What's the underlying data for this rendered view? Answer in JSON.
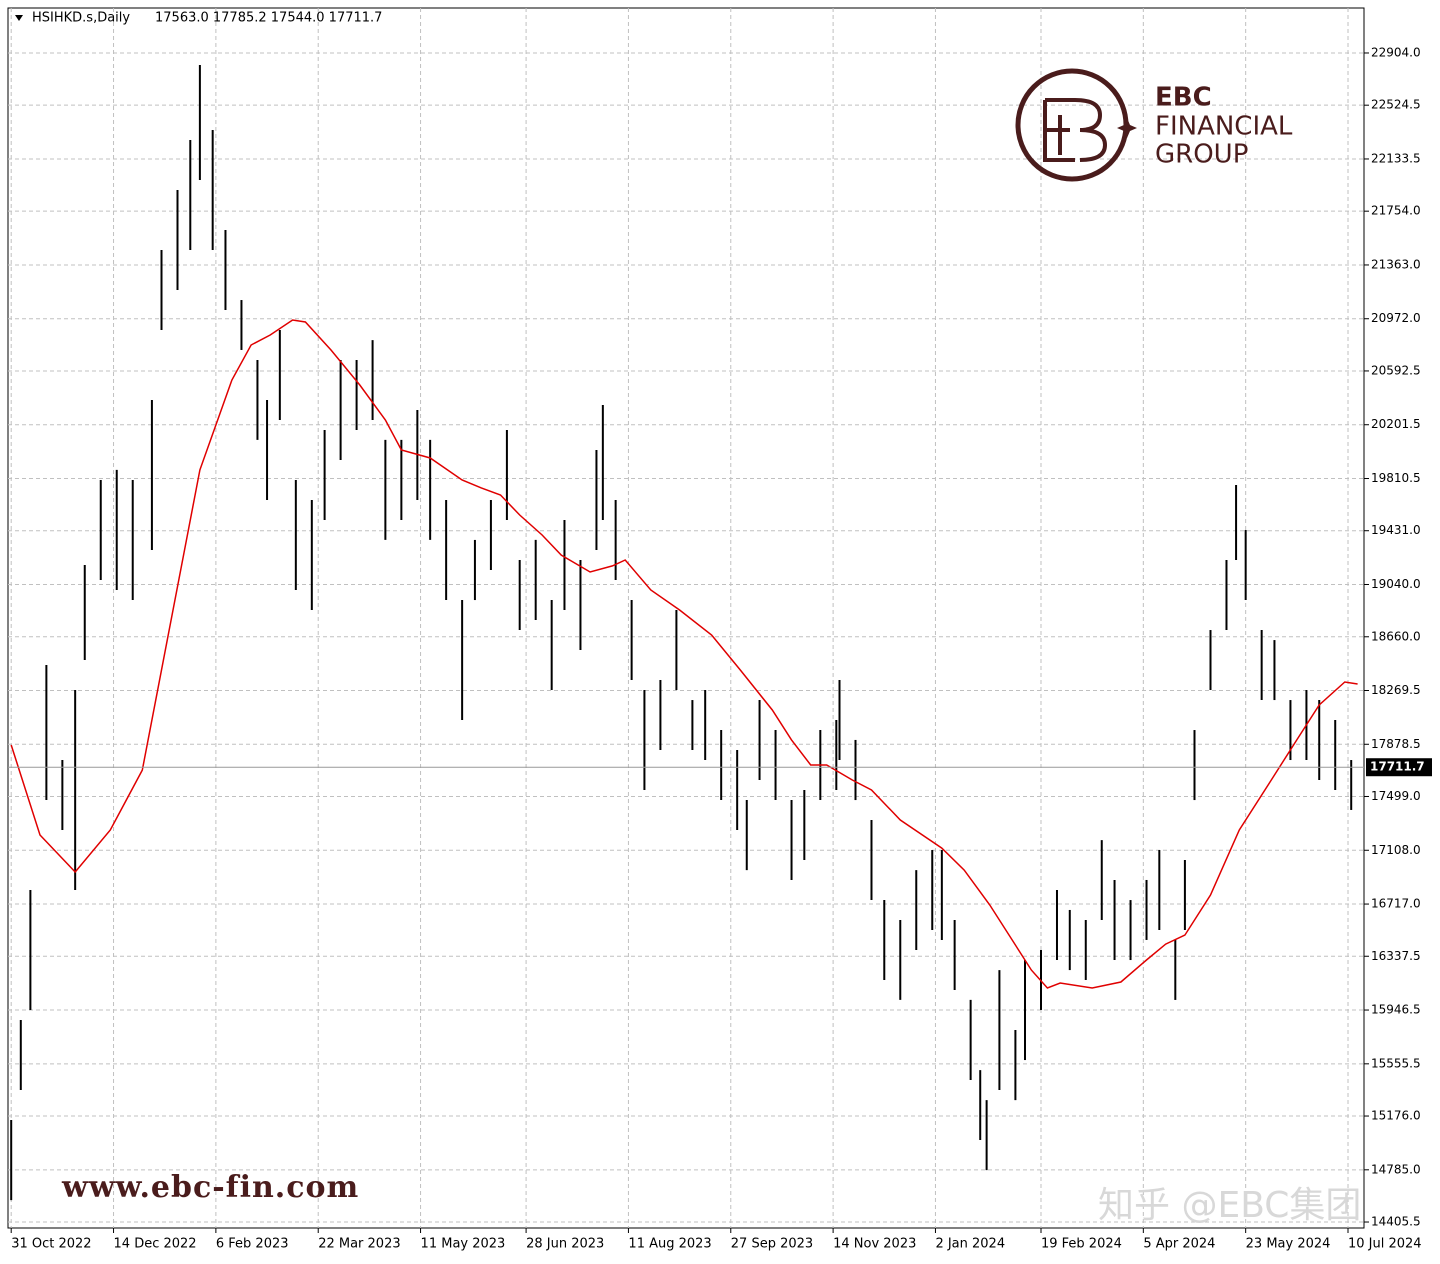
{
  "chart_data": {
    "type": "ohlc",
    "title": "HSIHKD.s,Daily",
    "subtitle": "17563.0 17785.2 17544.0 17711.7",
    "color": "#000000",
    "last_price": 17711.7,
    "x": [
      0,
      3,
      6,
      11,
      16,
      20,
      23,
      28,
      33,
      38,
      44,
      47,
      52,
      56,
      59,
      63,
      67,
      72,
      77,
      80,
      84,
      89,
      94,
      98,
      103,
      108,
      113,
      117,
      122,
      127,
      131,
      136,
      141,
      145,
      150,
      155,
      159,
      164,
      169,
      173,
      178,
      183,
      185,
      189,
      194,
      198,
      203,
      208,
      213,
      217,
      222,
      227,
      230,
      234,
      239,
      244,
      248,
      253,
      258,
      259,
      264,
      269,
      273,
      278,
      283,
      288,
      291,
      295,
      300,
      303,
      305,
      309,
      314,
      317,
      322,
      327,
      331,
      336,
      341,
      345,
      350,
      355,
      359,
      364,
      367,
      370,
      375,
      380,
      383,
      386,
      391,
      395,
      400,
      405,
      409,
      414,
      419
    ],
    "high": [
      15147,
      15874,
      16819,
      18455,
      17764,
      18273,
      19182,
      19800,
      19873,
      19800,
      20381,
      21472,
      21908,
      22271,
      22817,
      22344,
      21617,
      21108,
      20672,
      20381,
      20890,
      19800,
      19654,
      20163,
      20672,
      20672,
      20817,
      20091,
      20091,
      20309,
      20091,
      19654,
      18927,
      19364,
      19654,
      20163,
      19218,
      19364,
      18927,
      19509,
      19218,
      20018,
      20345,
      19654,
      18927,
      18273,
      18346,
      18855,
      18200,
      18273,
      17982,
      17837,
      17473,
      18200,
      17982,
      17473,
      17546,
      17982,
      18055,
      18346,
      17910,
      17328,
      16746,
      16601,
      16964,
      17110,
      17110,
      16601,
      16020,
      15510,
      15292,
      16237,
      15801,
      16310,
      16383,
      16819,
      16674,
      16601,
      17182,
      16892,
      16746,
      16892,
      17110,
      16456,
      17037,
      17982,
      18709,
      19218,
      19763,
      19436,
      18709,
      18636,
      18200,
      18273,
      18200,
      18055,
      17764
    ],
    "low": [
      14565,
      15365,
      15947,
      17473,
      17255,
      16819,
      18491,
      19073,
      19000,
      18927,
      19291,
      20890,
      21181,
      21472,
      21981,
      21472,
      21036,
      20745,
      20091,
      19654,
      20236,
      19000,
      18855,
      19509,
      19945,
      20163,
      20236,
      19364,
      19509,
      19654,
      19364,
      18927,
      18055,
      18927,
      19145,
      19509,
      18709,
      18782,
      18273,
      18855,
      18564,
      19291,
      19509,
      19073,
      18346,
      17546,
      17837,
      18273,
      17837,
      17764,
      17473,
      17255,
      16964,
      17619,
      17473,
      16892,
      17037,
      17473,
      17546,
      17764,
      17473,
      16746,
      16165,
      16020,
      16383,
      16528,
      16456,
      16092,
      15438,
      15002,
      14783,
      15365,
      15292,
      15583,
      15947,
      16310,
      16237,
      16165,
      16601,
      16310,
      16310,
      16456,
      16528,
      16020,
      16528,
      17473,
      18273,
      18709,
      19218,
      18927,
      18200,
      18200,
      17764,
      17764,
      17619,
      17546,
      17401
    ],
    "ma": {
      "color": "#e00000",
      "x": [
        0,
        9,
        20,
        31,
        41,
        50,
        59,
        69,
        75,
        81,
        88,
        92,
        100,
        109,
        117,
        122,
        131,
        141,
        147,
        153,
        159,
        166,
        172,
        181,
        188,
        192,
        200,
        209,
        219,
        228,
        238,
        244,
        250,
        255,
        263,
        269,
        278,
        291,
        298,
        306,
        313,
        319,
        324,
        328,
        338,
        347,
        355,
        361,
        367,
        375,
        384,
        394,
        402,
        409,
        417,
        421
      ],
      "values": [
        17873,
        17219,
        16950,
        17255,
        17691,
        18782,
        19873,
        20527,
        20781,
        20854,
        20963,
        20948,
        20745,
        20490,
        20236,
        20018,
        19960,
        19800,
        19742,
        19691,
        19545,
        19400,
        19254,
        19131,
        19175,
        19218,
        19000,
        18855,
        18673,
        18418,
        18128,
        17910,
        17728,
        17728,
        17619,
        17546,
        17328,
        17124,
        16964,
        16710,
        16456,
        16237,
        16107,
        16143,
        16107,
        16150,
        16310,
        16426,
        16491,
        16783,
        17255,
        17619,
        17910,
        18164,
        18331,
        18317
      ]
    },
    "xlim": [
      -1,
      423
    ],
    "ylim": [
      14362,
      23231
    ],
    "yticks": [
      {
        "value": 22904,
        "label": "22904.0"
      },
      {
        "value": 22524.5,
        "label": "22524.5"
      },
      {
        "value": 22133.5,
        "label": "22133.5"
      },
      {
        "value": 21754,
        "label": "21754.0"
      },
      {
        "value": 21363,
        "label": "21363.0"
      },
      {
        "value": 20972,
        "label": "20972.0"
      },
      {
        "value": 20592.5,
        "label": "20592.5"
      },
      {
        "value": 20201.5,
        "label": "20201.5"
      },
      {
        "value": 19810.5,
        "label": "19810.5"
      },
      {
        "value": 19431,
        "label": "19431.0"
      },
      {
        "value": 19040,
        "label": "19040.0"
      },
      {
        "value": 18660,
        "label": "18660.0"
      },
      {
        "value": 18269.5,
        "label": "18269.5"
      },
      {
        "value": 17878.5,
        "label": "17878.5"
      },
      {
        "value": 17499,
        "label": "17499.0"
      },
      {
        "value": 17108,
        "label": "17108.0"
      },
      {
        "value": 16717,
        "label": "16717.0"
      },
      {
        "value": 16337.5,
        "label": "16337.5"
      },
      {
        "value": 15946.5,
        "label": "15946.5"
      },
      {
        "value": 15555.5,
        "label": "15555.5"
      },
      {
        "value": 15176,
        "label": "15176.0"
      },
      {
        "value": 14785,
        "label": "14785.0"
      },
      {
        "value": 14405.5,
        "label": "14405.5"
      }
    ],
    "xticks": [
      {
        "value": 0,
        "label": "31 Oct 2022"
      },
      {
        "value": 32,
        "label": "14 Dec 2022"
      },
      {
        "value": 64,
        "label": "6 Feb 2023"
      },
      {
        "value": 96,
        "label": "22 Mar 2023"
      },
      {
        "value": 128,
        "label": "11 May 2023"
      },
      {
        "value": 161,
        "label": "28 Jun 2023"
      },
      {
        "value": 193,
        "label": "11 Aug 2023"
      },
      {
        "value": 225,
        "label": "27 Sep 2023"
      },
      {
        "value": 257,
        "label": "14 Nov 2023"
      },
      {
        "value": 289,
        "label": "2 Jan 2024"
      },
      {
        "value": 322,
        "label": "19 Feb 2024"
      },
      {
        "value": 354,
        "label": "5 Apr 2024"
      },
      {
        "value": 386,
        "label": "23 May 2024"
      },
      {
        "value": 418,
        "label": "10 Jul 2024"
      }
    ],
    "grid": true
  },
  "watermarks": {
    "logo_line1": "EBC",
    "logo_line2": "FINANCIAL",
    "logo_line3": "GROUP",
    "url": "www.ebc-fin.com",
    "credit": "知乎 @EBC集团"
  }
}
